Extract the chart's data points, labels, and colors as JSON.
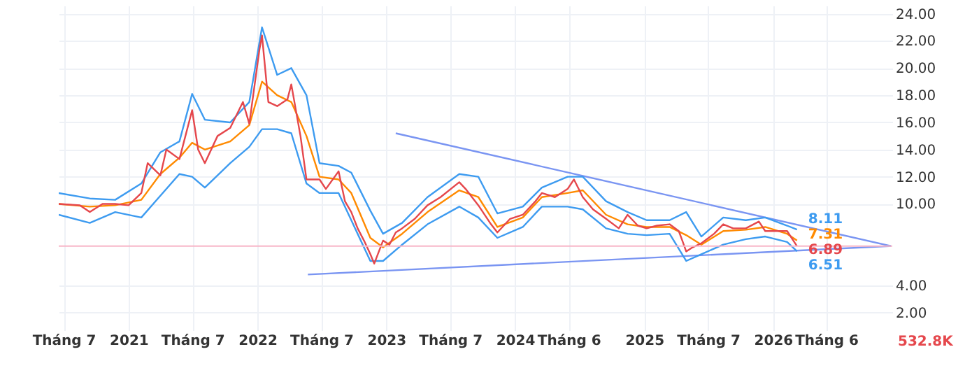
{
  "chart_data": {
    "type": "line",
    "xlim": [
      "2020-06-17",
      "2026-12-05"
    ],
    "ylim": [
      0.7,
      24.6
    ],
    "xticks": [
      {
        "value": "2020-07",
        "label": "Tháng 7"
      },
      {
        "value": "2021-01",
        "label": "2021"
      },
      {
        "value": "2021-07",
        "label": "Tháng 7"
      },
      {
        "value": "2022-01",
        "label": "2022"
      },
      {
        "value": "2022-07",
        "label": "Tháng 7"
      },
      {
        "value": "2023-01",
        "label": "2023"
      },
      {
        "value": "2023-07",
        "label": "Tháng 7"
      },
      {
        "value": "2024-01",
        "label": "2024"
      },
      {
        "value": "2024-06",
        "label": "Tháng 6"
      },
      {
        "value": "2025-01",
        "label": "2025"
      },
      {
        "value": "2025-07",
        "label": "Tháng 7"
      },
      {
        "value": "2026-01",
        "label": "2026"
      },
      {
        "value": "2026-06",
        "label": "Tháng 6"
      }
    ],
    "yticks": [
      {
        "value": 2,
        "label": "2.00"
      },
      {
        "value": 4,
        "label": "4.00"
      },
      {
        "value": 10,
        "label": "10.00"
      },
      {
        "value": 12,
        "label": "12.00"
      },
      {
        "value": 14,
        "label": "14.00"
      },
      {
        "value": 16,
        "label": "16.00"
      },
      {
        "value": 18,
        "label": "18.00"
      },
      {
        "value": 20,
        "label": "20.00"
      },
      {
        "value": 22,
        "label": "22.00"
      },
      {
        "value": 24,
        "label": "24.00"
      }
    ],
    "grid": true,
    "series": [
      {
        "color": "#e5474c",
        "x": [
          "2020-06-17",
          "2020-08-16",
          "2020-09-13",
          "2020-10-19",
          "2020-11-24",
          "2021-01-01",
          "2021-02-06",
          "2021-02-24",
          "2021-04-01",
          "2021-04-18",
          "2021-05-25",
          "2021-06-30",
          "2021-07-17",
          "2021-08-05",
          "2021-09-10",
          "2021-10-16",
          "2021-11-21",
          "2021-12-09",
          "2022-01-07",
          "2022-01-14",
          "2022-02-01",
          "2022-02-26",
          "2022-03-27",
          "2022-04-07",
          "2022-05-03",
          "2022-05-20",
          "2022-06-26",
          "2022-07-14",
          "2022-08-19",
          "2022-09-06",
          "2022-09-24",
          "2022-10-12",
          "2022-10-30",
          "2022-11-17",
          "2022-11-28",
          "2022-12-23",
          "2023-01-10",
          "2023-01-28",
          "2023-02-15",
          "2023-03-23",
          "2023-04-28",
          "2023-06-04",
          "2023-07-27",
          "2023-08-14",
          "2023-09-19",
          "2023-10-25",
          "2023-11-12",
          "2023-12-18",
          "2024-01-23",
          "2024-02-28",
          "2024-03-17",
          "2024-04-23",
          "2024-05-29",
          "2024-06-16",
          "2024-07-11",
          "2024-08-09",
          "2024-09-15",
          "2024-10-21",
          "2024-11-15",
          "2024-12-14",
          "2025-01-08",
          "2025-02-06",
          "2025-03-14",
          "2025-04-09",
          "2025-04-19",
          "2025-04-30",
          "2025-05-18",
          "2025-06-12",
          "2025-07-18",
          "2025-08-13",
          "2025-09-10",
          "2025-10-16",
          "2025-11-22",
          "2025-12-10",
          "2026-01-15",
          "2026-02-10",
          "2026-03-10"
        ],
        "values": [
          10.0,
          9.9,
          9.4,
          10.0,
          10.0,
          9.9,
          10.8,
          13.0,
          12.1,
          14.0,
          13.3,
          16.9,
          14.0,
          13.0,
          15.0,
          15.6,
          17.5,
          15.9,
          21.4,
          22.4,
          17.5,
          17.2,
          17.7,
          18.8,
          15.0,
          11.8,
          11.8,
          11.1,
          12.4,
          10.2,
          9.4,
          8.2,
          7.3,
          6.3,
          5.6,
          7.3,
          7.0,
          7.9,
          8.2,
          8.9,
          9.9,
          10.5,
          11.6,
          11.1,
          9.9,
          8.5,
          7.9,
          8.9,
          9.2,
          10.2,
          10.8,
          10.5,
          11.1,
          11.8,
          10.5,
          9.6,
          8.9,
          8.2,
          9.2,
          8.4,
          8.2,
          8.4,
          8.5,
          8.0,
          7.3,
          6.5,
          6.8,
          7.1,
          7.8,
          8.5,
          8.2,
          8.2,
          8.7,
          8.0,
          8.0,
          8.0,
          6.89
        ],
        "value_labels": [
          null,
          null,
          null,
          null,
          null,
          null,
          null,
          null,
          null,
          null,
          null,
          null,
          null,
          null,
          null,
          null,
          null,
          null,
          null,
          null,
          null,
          null,
          null,
          null,
          null,
          null,
          null,
          null,
          null,
          null,
          null,
          null,
          null,
          null,
          null,
          null,
          null,
          null,
          null,
          null,
          null,
          null,
          null,
          null,
          null,
          null,
          null,
          null,
          null,
          null,
          null,
          null,
          null,
          null,
          null,
          null,
          null,
          null,
          null,
          null,
          null,
          null,
          null,
          null,
          null,
          null,
          null,
          null,
          null,
          null,
          null,
          null,
          null,
          null,
          null,
          null,
          "6.89"
        ]
      },
      {
        "color": "#ff8a00",
        "x": [
          "2020-06-17",
          "2020-09-13",
          "2020-11-24",
          "2021-02-06",
          "2021-04-01",
          "2021-05-25",
          "2021-06-30",
          "2021-08-05",
          "2021-10-16",
          "2021-12-09",
          "2022-01-14",
          "2022-02-26",
          "2022-04-07",
          "2022-05-20",
          "2022-06-26",
          "2022-08-19",
          "2022-09-24",
          "2022-11-17",
          "2022-12-23",
          "2023-02-15",
          "2023-04-28",
          "2023-07-27",
          "2023-09-19",
          "2023-11-12",
          "2024-01-23",
          "2024-03-17",
          "2024-05-29",
          "2024-07-11",
          "2024-09-15",
          "2024-11-15",
          "2025-01-08",
          "2025-03-14",
          "2025-04-30",
          "2025-06-12",
          "2025-08-13",
          "2025-10-16",
          "2025-12-10",
          "2026-02-10",
          "2026-03-10"
        ],
        "values": [
          10.0,
          9.8,
          9.9,
          10.3,
          12.2,
          13.4,
          14.5,
          14.0,
          14.6,
          15.8,
          19.0,
          18.0,
          17.5,
          15.0,
          12.0,
          11.8,
          10.8,
          7.5,
          6.8,
          7.8,
          9.4,
          11.0,
          10.5,
          8.3,
          9.0,
          10.5,
          10.8,
          11.0,
          9.2,
          8.5,
          8.3,
          8.3,
          7.7,
          7.0,
          8.0,
          8.1,
          8.3,
          7.8,
          7.31
        ],
        "value_labels": [
          null,
          null,
          null,
          null,
          null,
          null,
          null,
          null,
          null,
          null,
          null,
          null,
          null,
          null,
          null,
          null,
          null,
          null,
          null,
          null,
          null,
          null,
          null,
          null,
          null,
          null,
          null,
          null,
          null,
          null,
          null,
          null,
          null,
          null,
          null,
          null,
          null,
          null,
          "7.31"
        ]
      },
      {
        "color": "#3d9bf0",
        "x": [
          "2020-06-17",
          "2020-09-13",
          "2020-11-24",
          "2021-02-06",
          "2021-04-01",
          "2021-05-25",
          "2021-06-30",
          "2021-08-05",
          "2021-10-16",
          "2021-12-09",
          "2022-01-14",
          "2022-02-26",
          "2022-04-07",
          "2022-05-20",
          "2022-06-26",
          "2022-08-19",
          "2022-09-24",
          "2022-11-17",
          "2022-12-23",
          "2023-02-15",
          "2023-04-28",
          "2023-07-27",
          "2023-09-19",
          "2023-11-12",
          "2024-01-23",
          "2024-03-17",
          "2024-05-29",
          "2024-07-11",
          "2024-09-15",
          "2024-11-15",
          "2025-01-08",
          "2025-03-14",
          "2025-04-30",
          "2025-06-12",
          "2025-08-13",
          "2025-10-16",
          "2025-12-10",
          "2026-02-10",
          "2026-03-10"
        ],
        "values": [
          10.8,
          10.4,
          10.3,
          11.5,
          13.8,
          14.6,
          18.1,
          16.2,
          16.0,
          17.5,
          23.0,
          19.5,
          20.0,
          18.0,
          13.0,
          12.8,
          12.3,
          9.5,
          7.8,
          8.6,
          10.5,
          12.2,
          12.0,
          9.3,
          9.8,
          11.2,
          12.0,
          12.0,
          10.2,
          9.4,
          8.8,
          8.8,
          9.4,
          7.6,
          9.0,
          8.8,
          9.0,
          8.4,
          8.11
        ],
        "value_labels": [
          null,
          null,
          null,
          null,
          null,
          null,
          null,
          null,
          null,
          null,
          null,
          null,
          null,
          null,
          null,
          null,
          null,
          null,
          null,
          null,
          null,
          null,
          null,
          null,
          null,
          null,
          null,
          null,
          null,
          null,
          null,
          null,
          null,
          null,
          null,
          null,
          null,
          null,
          "8.11"
        ]
      },
      {
        "color": "#3d9bf0",
        "x": [
          "2020-06-17",
          "2020-09-13",
          "2020-11-24",
          "2021-02-06",
          "2021-04-01",
          "2021-05-25",
          "2021-06-30",
          "2021-08-05",
          "2021-10-16",
          "2021-12-09",
          "2022-01-14",
          "2022-02-26",
          "2022-04-07",
          "2022-05-20",
          "2022-06-26",
          "2022-08-19",
          "2022-09-24",
          "2022-11-17",
          "2022-12-23",
          "2023-02-15",
          "2023-04-28",
          "2023-07-27",
          "2023-09-19",
          "2023-11-12",
          "2024-01-23",
          "2024-03-17",
          "2024-05-29",
          "2024-07-11",
          "2024-09-15",
          "2024-11-15",
          "2025-01-08",
          "2025-03-14",
          "2025-04-30",
          "2025-06-12",
          "2025-08-13",
          "2025-10-16",
          "2025-12-10",
          "2026-02-10",
          "2026-03-10"
        ],
        "values": [
          9.2,
          8.6,
          9.4,
          9.0,
          10.6,
          12.2,
          12.0,
          11.2,
          13.0,
          14.2,
          15.5,
          15.5,
          15.2,
          11.5,
          10.8,
          10.8,
          8.8,
          5.8,
          5.8,
          7.0,
          8.5,
          9.8,
          9.0,
          7.5,
          8.3,
          9.8,
          9.8,
          9.6,
          8.2,
          7.8,
          7.7,
          7.8,
          5.8,
          6.3,
          7.0,
          7.4,
          7.6,
          7.2,
          6.51
        ],
        "value_labels": [
          null,
          null,
          null,
          null,
          null,
          null,
          null,
          null,
          null,
          null,
          null,
          null,
          null,
          null,
          null,
          null,
          null,
          null,
          null,
          null,
          null,
          null,
          null,
          null,
          null,
          null,
          null,
          null,
          null,
          null,
          null,
          null,
          null,
          null,
          null,
          null,
          null,
          null,
          "6.51"
        ]
      },
      {
        "color": "#7a95f2",
        "x": [
          "2023-01-28",
          "2026-12-01"
        ],
        "values": [
          15.2,
          6.9
        ]
      },
      {
        "color": "#7a95f2",
        "x": [
          "2022-05-24",
          "2026-12-01"
        ],
        "values": [
          4.8,
          6.9
        ]
      }
    ],
    "ref_lines": [
      {
        "axis": "y",
        "value": 6.89,
        "color": "#f7b6c8"
      }
    ],
    "annotations": [
      "532.8K"
    ]
  }
}
